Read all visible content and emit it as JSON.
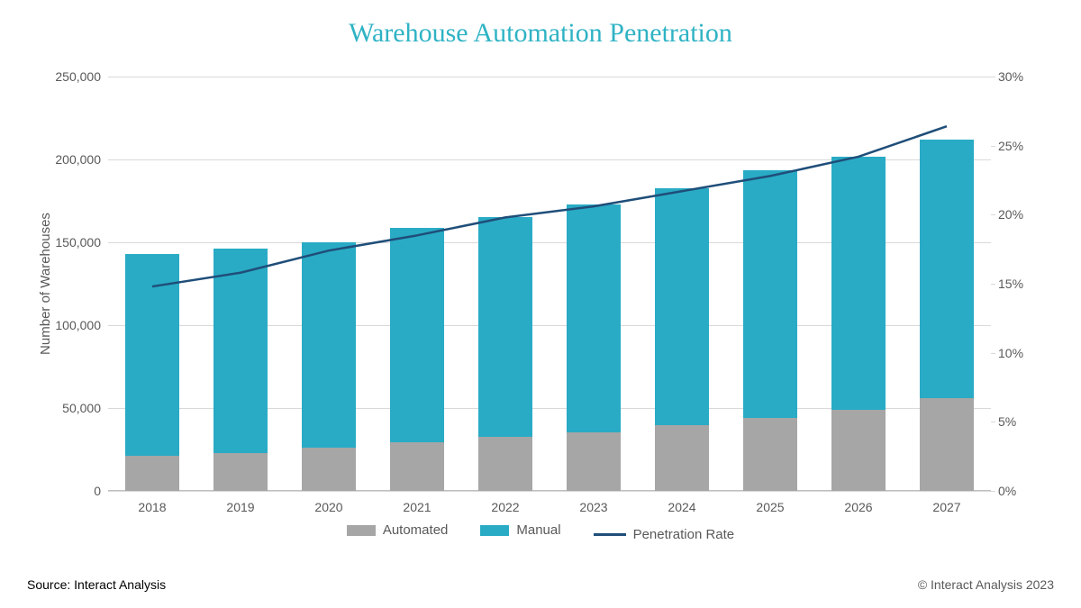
{
  "title": "Warehouse Automation Penetration",
  "title_color": "#2fb3c4",
  "title_fontsize": 30,
  "source": "Source: Interact Analysis",
  "copyright": "© Interact Analysis 2023",
  "chart": {
    "type": "stacked-bar-with-line",
    "background_color": "#ffffff",
    "grid_color": "#d9d9d9",
    "text_color": "#595959",
    "y_left": {
      "label": "Number of Warehouses",
      "min": 0,
      "max": 250000,
      "ticks": [
        0,
        50000,
        100000,
        150000,
        200000,
        250000
      ],
      "tick_labels": [
        "0",
        "50,000",
        "100,000",
        "150,000",
        "200,000",
        "250,000"
      ]
    },
    "y_right": {
      "min": 0,
      "max": 30,
      "ticks": [
        0,
        5,
        10,
        15,
        20,
        25,
        30
      ],
      "tick_labels": [
        "0%",
        "5%",
        "10%",
        "15%",
        "20%",
        "25%",
        "30%"
      ]
    },
    "categories": [
      "2018",
      "2019",
      "2020",
      "2021",
      "2022",
      "2023",
      "2024",
      "2025",
      "2026",
      "2027"
    ],
    "series": {
      "automated": {
        "label": "Automated",
        "color": "#a6a6a6",
        "values": [
          21000,
          23000,
          26000,
          29500,
          32500,
          35500,
          39500,
          44000,
          49000,
          56000
        ]
      },
      "manual": {
        "label": "Manual",
        "color": "#29abc5",
        "values": [
          122000,
          123000,
          124000,
          129000,
          132500,
          137500,
          143000,
          149500,
          152500,
          156000
        ]
      },
      "penetration_rate": {
        "label": "Penetration Rate",
        "color": "#1f4e79",
        "values": [
          14.8,
          15.8,
          17.4,
          18.5,
          19.8,
          20.6,
          21.7,
          22.8,
          24.2,
          26.4
        ],
        "line_width": 2.5
      }
    },
    "bar_width_ratio": 0.62,
    "label_fontsize": 15,
    "tick_fontsize": 14
  },
  "legend": {
    "items": [
      {
        "type": "swatch",
        "label": "Automated",
        "color": "#a6a6a6"
      },
      {
        "type": "swatch",
        "label": "Manual",
        "color": "#29abc5"
      },
      {
        "type": "line",
        "label": "Penetration Rate",
        "color": "#1f4e79"
      }
    ]
  }
}
